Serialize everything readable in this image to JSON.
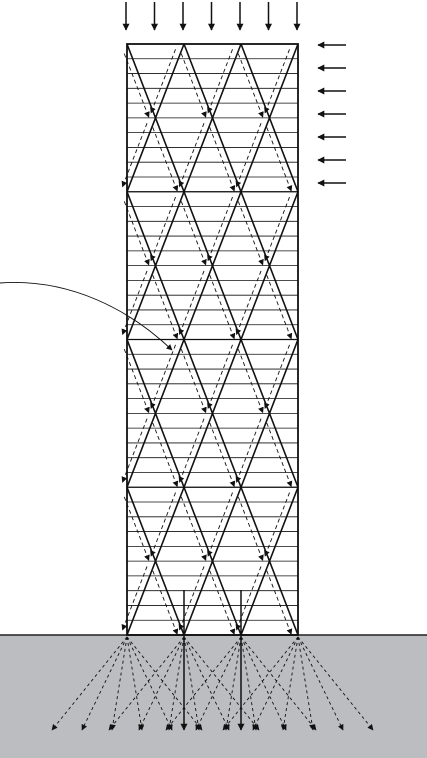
{
  "diagram": {
    "frame_stories": 40,
    "diagrid_bays": 3,
    "diagrid_modules": 4,
    "gravity_load_arrows": 7,
    "lateral_load_arrows": 7,
    "foundation_nodes": 4,
    "foundation_dashed_arrows_per_node": 6,
    "colors": {
      "background": "#ffffff",
      "ground": "#bcbdc0",
      "ground_line": "#222222",
      "lines": "#111111"
    }
  }
}
